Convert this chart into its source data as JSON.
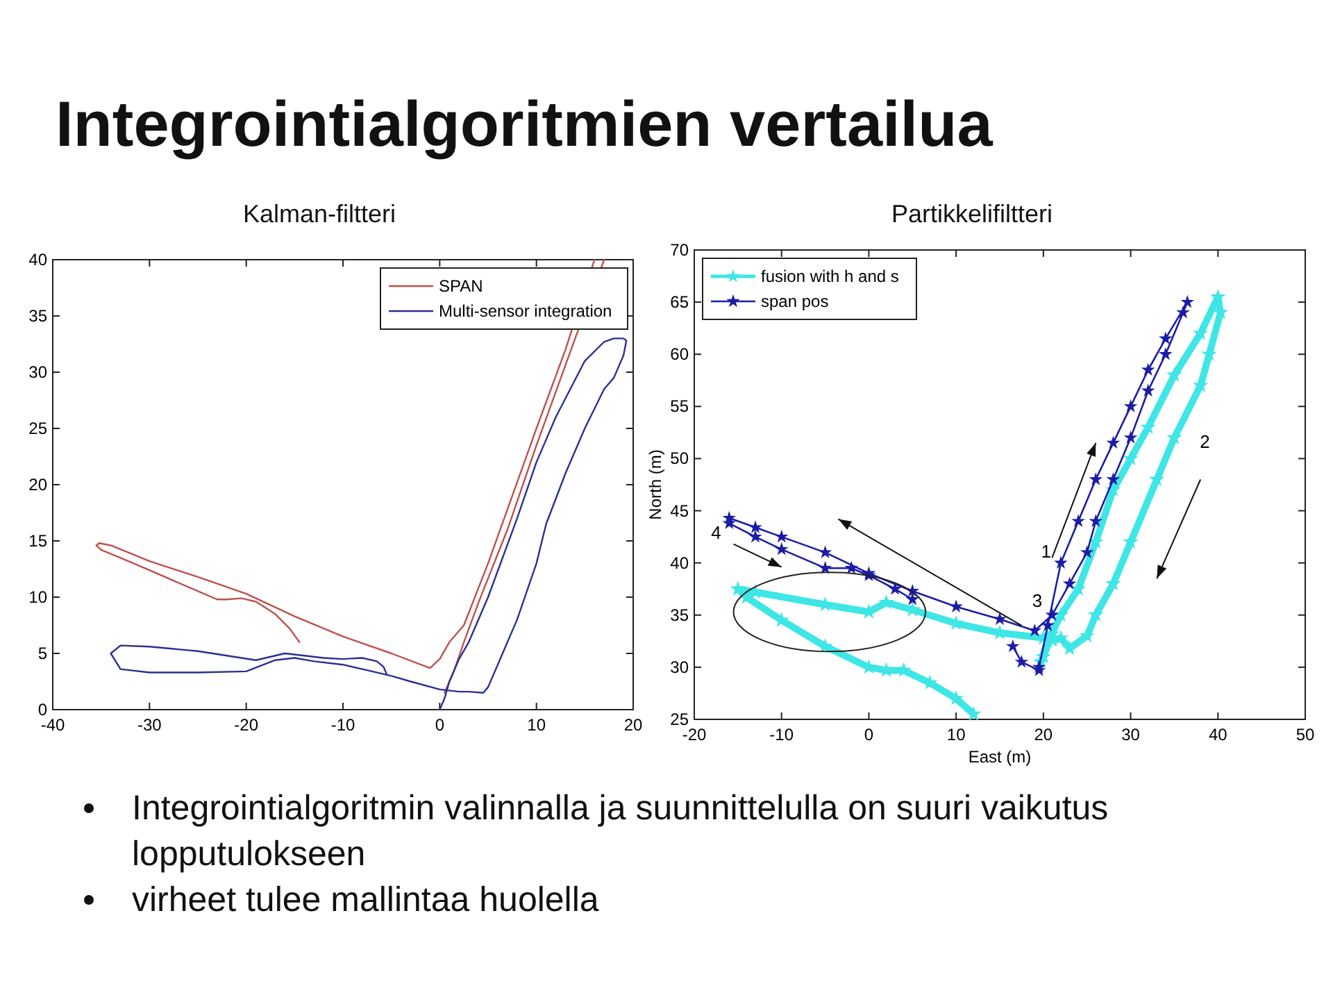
{
  "chart_data": [
    {
      "type": "line",
      "title": "Integrointialgoritmien vertailua",
      "subtitle": "Kalman-filtteri",
      "xlim": [
        -40,
        20
      ],
      "ylim": [
        0,
        40
      ],
      "xticks": [
        -40,
        -30,
        -20,
        -10,
        0,
        10,
        20
      ],
      "yticks": [
        0,
        5,
        10,
        15,
        20,
        25,
        30,
        35,
        40
      ],
      "grid": false,
      "legend": "top right",
      "line_style": "solid",
      "annotations": [
        "Integrointialgoritmin valinnalla ja suunnittelulla on suuri vaikutus lopputulokseen",
        "virheet tulee mallintaa huolella"
      ],
      "series": [
        {
          "name": "SPAN",
          "color": "#c0504d",
          "x": [
            -14.5,
            -15.5,
            -17,
            -19,
            -20.5,
            -22,
            -23,
            -26,
            -30,
            -33,
            -35,
            -35.5,
            -35.2,
            -34,
            -30,
            -25,
            -20,
            -15,
            -10,
            -5,
            -1,
            0,
            1,
            2.5,
            5,
            10,
            13,
            16,
            null,
            17,
            14,
            10,
            7,
            4,
            2.5,
            1.5,
            0.5
          ],
          "values": [
            6,
            7.2,
            8.5,
            9.6,
            9.9,
            9.8,
            9.8,
            10.9,
            12.4,
            13.5,
            14.2,
            14.6,
            14.8,
            14.6,
            13.2,
            11.8,
            10.3,
            8.3,
            6.5,
            5,
            3.7,
            4.5,
            6,
            7.5,
            13,
            25,
            32,
            40,
            null,
            40,
            33,
            23.5,
            16,
            9.5,
            6,
            3.5,
            1.5
          ]
        },
        {
          "name": "Multi-sensor integration",
          "color": "#2b2f94",
          "x": [
            0,
            0.5,
            1,
            2,
            3,
            5,
            8,
            10,
            12,
            15,
            17,
            18,
            19,
            19.3,
            19,
            18,
            17,
            15,
            13,
            11,
            10,
            8,
            6,
            5,
            4.5,
            3,
            2,
            0,
            -3,
            -5,
            -8,
            -10,
            -13,
            -15,
            -17,
            -20,
            -25,
            -30,
            -33,
            -34,
            -33,
            -30,
            -25,
            -22,
            -19,
            -17,
            -16,
            -14,
            -12,
            -10,
            -8,
            -6.5,
            -5.8,
            -5.5
          ],
          "values": [
            0,
            1,
            2.5,
            4.5,
            6,
            10,
            17,
            22,
            26,
            31,
            32.7,
            33,
            33,
            32.8,
            31.5,
            29.5,
            28.5,
            25,
            21,
            16.5,
            13,
            8,
            4,
            2,
            1.5,
            1.6,
            1.6,
            1.8,
            2.5,
            3,
            3.6,
            4,
            4.3,
            4.6,
            4.4,
            3.4,
            3.3,
            3.3,
            3.6,
            5,
            5.7,
            5.6,
            5.2,
            4.8,
            4.4,
            4.8,
            5,
            4.8,
            4.6,
            4.5,
            4.6,
            4.3,
            3.8,
            3.2
          ]
        }
      ]
    },
    {
      "type": "line",
      "subtitle": "Partikkelifiltteri",
      "xlabel": "East (m)",
      "ylabel": "North (m)",
      "xlim": [
        -20,
        50
      ],
      "ylim": [
        25,
        70
      ],
      "xticks": [
        -20,
        -10,
        0,
        10,
        20,
        30,
        40,
        50
      ],
      "yticks": [
        25,
        30,
        35,
        40,
        45,
        50,
        55,
        60,
        65,
        70
      ],
      "grid": false,
      "legend": "top left",
      "marker": "star",
      "line_style": "solid",
      "annotations": [
        "1",
        "2",
        "3",
        "4"
      ],
      "series": [
        {
          "name": "fusion with h and s",
          "color": "#3ee6e6",
          "x": [
            12,
            10,
            7,
            4,
            2,
            0,
            -5,
            -10,
            -14,
            -15,
            -13,
            -5,
            0,
            2,
            5,
            10,
            15,
            20,
            21,
            20,
            19.7,
            20.5,
            22,
            24,
            26,
            28,
            30,
            32,
            35,
            38,
            40,
            40.3,
            39,
            38,
            35,
            33,
            30,
            28,
            26,
            25,
            23,
            22,
            21
          ],
          "values": [
            25.5,
            27,
            28.5,
            29.7,
            29.7,
            30,
            32,
            34.5,
            36.7,
            37.5,
            37.2,
            36,
            35.3,
            36.2,
            35.5,
            34.2,
            33.3,
            32.8,
            33.2,
            31,
            30.5,
            32.5,
            35,
            37.5,
            42,
            47,
            50,
            53,
            58,
            62,
            65.5,
            64,
            60,
            57,
            52,
            48,
            42,
            38,
            35,
            33,
            31.8,
            32.8,
            32.6
          ]
        },
        {
          "name": "span pos",
          "color": "#1c1ca8",
          "x": [
            16.5,
            17.5,
            19.5,
            19.5,
            20.5,
            22,
            24,
            26,
            28,
            30,
            32,
            34,
            36.5,
            36,
            34,
            32,
            30,
            28,
            26,
            25,
            23,
            21,
            19,
            15,
            10,
            5,
            0,
            -5,
            -10,
            -13,
            -16,
            -16,
            -13,
            -10,
            -5,
            -2,
            0,
            3,
            5
          ],
          "values": [
            32,
            30.5,
            29.7,
            30,
            34,
            40,
            44,
            48,
            51.5,
            55,
            58.5,
            61.5,
            65,
            64,
            60,
            56.5,
            52,
            48,
            44,
            41,
            38,
            35,
            33.5,
            34.6,
            35.8,
            37.3,
            39,
            41,
            42.5,
            43.4,
            44.3,
            43.8,
            42.5,
            41.3,
            39.5,
            39.5,
            38.8,
            37.5,
            36.5
          ]
        }
      ]
    }
  ]
}
